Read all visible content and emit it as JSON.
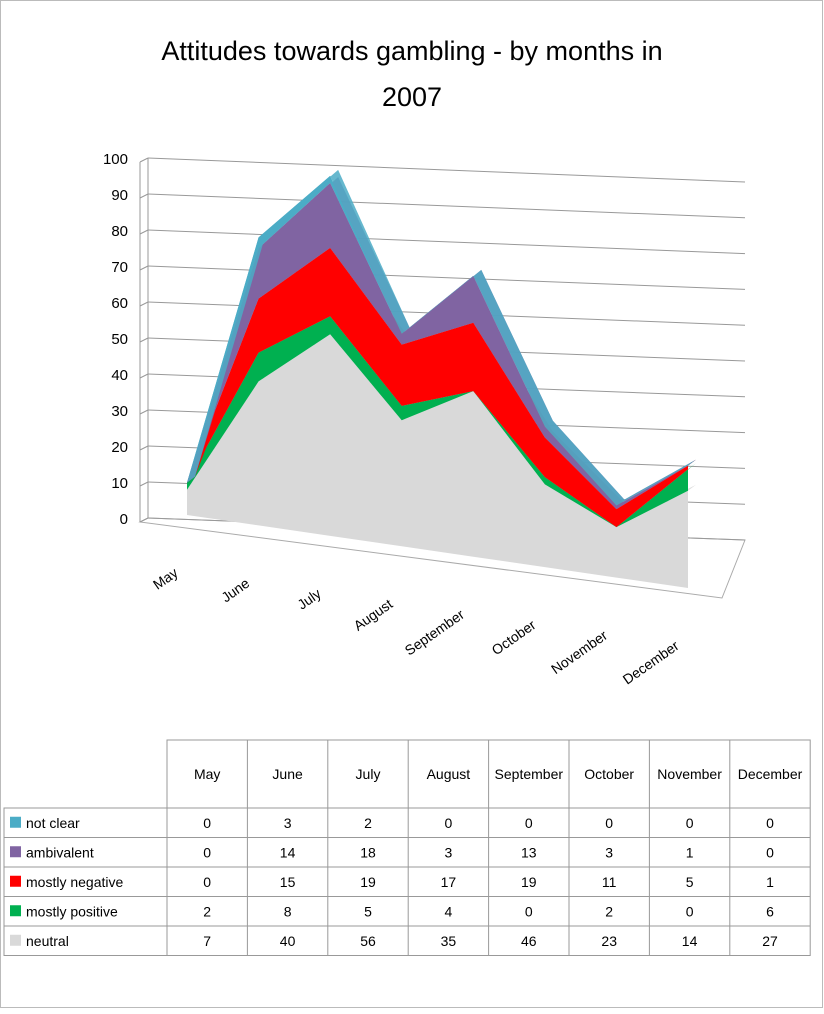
{
  "chart_data": {
    "type": "area",
    "stacked": true,
    "view": "3d",
    "title": "Attitudes towards gambling - by months in 2007",
    "categories": [
      "May",
      "June",
      "July",
      "August",
      "September",
      "October",
      "November",
      "December"
    ],
    "series": [
      {
        "name": "not clear",
        "color": "#4bacc6",
        "values": [
          0,
          3,
          2,
          0,
          0,
          0,
          0,
          0
        ]
      },
      {
        "name": "ambivalent",
        "color": "#8064a2",
        "values": [
          0,
          14,
          18,
          3,
          13,
          3,
          1,
          0
        ]
      },
      {
        "name": "mostly negative",
        "color": "#ff0000",
        "values": [
          0,
          15,
          19,
          17,
          19,
          11,
          5,
          1
        ]
      },
      {
        "name": "mostly positive",
        "color": "#00b050",
        "values": [
          2,
          8,
          5,
          4,
          0,
          2,
          0,
          6
        ]
      },
      {
        "name": "neutral",
        "color": "#d9d9d9",
        "values": [
          7,
          40,
          56,
          35,
          46,
          23,
          14,
          27
        ]
      }
    ],
    "ylim": [
      0,
      100
    ],
    "yticks": [
      0,
      10,
      20,
      30,
      40,
      50,
      60,
      70,
      80,
      90,
      100
    ],
    "grid": true,
    "data_table": true
  }
}
